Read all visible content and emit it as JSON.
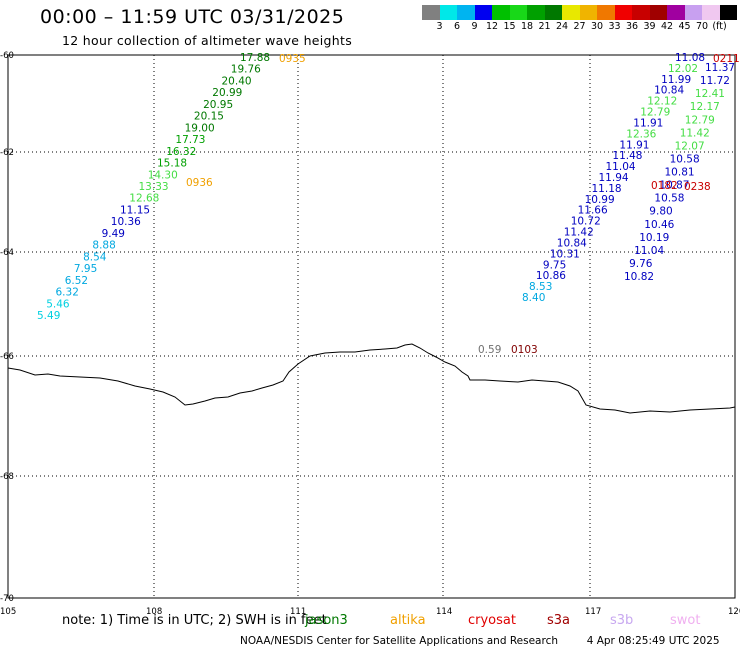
{
  "header": {
    "title": "00:00 – 11:59 UTC 03/31/2025",
    "subtitle": "12 hour collection of altimeter wave heights"
  },
  "legend": {
    "colors": [
      "#808080",
      "#00e8e8",
      "#00b4f0",
      "#0000f0",
      "#00c000",
      "#18d818",
      "#00a000",
      "#007800",
      "#e8e800",
      "#f0b400",
      "#f07800",
      "#f00000",
      "#c80000",
      "#a00000",
      "#a000a0",
      "#c8a0f0",
      "#f0c8f0",
      "#000000"
    ],
    "tick_values": [
      "3",
      "6",
      "9",
      "12",
      "15",
      "18",
      "21",
      "24",
      "27",
      "30",
      "33",
      "36",
      "39",
      "42",
      "45",
      "70",
      "(ft)"
    ]
  },
  "axes": {
    "lon_labels": [
      "105",
      "108",
      "111",
      "114",
      "117",
      "120"
    ],
    "lat_labels": [
      "-60",
      "-62",
      "-64",
      "-66",
      "-68",
      "-70"
    ]
  },
  "tracks": {
    "left": [
      {
        "v": "17.88",
        "c": "#007800"
      },
      {
        "v": "19.76",
        "c": "#007800"
      },
      {
        "v": "20.40",
        "c": "#007800"
      },
      {
        "v": "20.99",
        "c": "#007800"
      },
      {
        "v": "20.95",
        "c": "#007800"
      },
      {
        "v": "20.15",
        "c": "#007800"
      },
      {
        "v": "19.00",
        "c": "#007800"
      },
      {
        "v": "17.73",
        "c": "#00a000"
      },
      {
        "v": "16.32",
        "c": "#00a000"
      },
      {
        "v": "15.18",
        "c": "#00a000"
      },
      {
        "v": "14.30",
        "c": "#44dd44"
      },
      {
        "v": "13.33",
        "c": "#44dd44"
      },
      {
        "v": "12.68",
        "c": "#44dd44"
      },
      {
        "v": "11.15",
        "c": "#0000c0"
      },
      {
        "v": "10.36",
        "c": "#0000c0"
      },
      {
        "v": "9.49",
        "c": "#0000c0"
      },
      {
        "v": "8.88",
        "c": "#00a8e0"
      },
      {
        "v": "8.54",
        "c": "#00a8e0"
      },
      {
        "v": "7.95",
        "c": "#00a8e0"
      },
      {
        "v": "6.52",
        "c": "#00a8e0"
      },
      {
        "v": "6.32",
        "c": "#00a8e0"
      },
      {
        "v": "5.46",
        "c": "#00d0e0"
      },
      {
        "v": "5.49",
        "c": "#00d0e0"
      }
    ],
    "left_times": [
      "0935",
      "0936"
    ],
    "mid": [
      {
        "v": "11.08",
        "c": "#0000c0"
      },
      {
        "v": "12.02",
        "c": "#44dd44"
      },
      {
        "v": "11.99",
        "c": "#0000c0"
      },
      {
        "v": "10.84",
        "c": "#0000c0"
      },
      {
        "v": "12.12",
        "c": "#44dd44"
      },
      {
        "v": "12.79",
        "c": "#44dd44"
      },
      {
        "v": "11.91",
        "c": "#0000c0"
      },
      {
        "v": "12.36",
        "c": "#44dd44"
      },
      {
        "v": "11.91",
        "c": "#0000c0"
      },
      {
        "v": "11.48",
        "c": "#0000c0"
      },
      {
        "v": "11.04",
        "c": "#0000c0"
      },
      {
        "v": "11.94",
        "c": "#0000c0"
      },
      {
        "v": "11.18",
        "c": "#0000c0"
      },
      {
        "v": "10.99",
        "c": "#0000c0"
      },
      {
        "v": "11.66",
        "c": "#0000c0"
      },
      {
        "v": "10.72",
        "c": "#0000c0"
      },
      {
        "v": "11.42",
        "c": "#0000c0"
      },
      {
        "v": "10.84",
        "c": "#0000c0"
      },
      {
        "v": "10.31",
        "c": "#0000c0"
      },
      {
        "v": "9.75",
        "c": "#0000c0"
      },
      {
        "v": "10.86",
        "c": "#0000c0"
      },
      {
        "v": "8.53",
        "c": "#00a8e0"
      },
      {
        "v": "8.40",
        "c": "#00a8e0"
      }
    ],
    "right": [
      {
        "v": "11.37",
        "c": "#0000c0"
      },
      {
        "v": "11.72",
        "c": "#0000c0"
      },
      {
        "v": "12.41",
        "c": "#44dd44"
      },
      {
        "v": "12.17",
        "c": "#44dd44"
      },
      {
        "v": "12.79",
        "c": "#44dd44"
      },
      {
        "v": "11.42",
        "c": "#44dd44"
      },
      {
        "v": "12.07",
        "c": "#44dd44"
      },
      {
        "v": "10.58",
        "c": "#0000c0"
      },
      {
        "v": "10.81",
        "c": "#0000c0"
      },
      {
        "v": "10.87",
        "c": "#0000c0"
      },
      {
        "v": "10.58",
        "c": "#0000c0"
      },
      {
        "v": "9.80",
        "c": "#0000c0"
      },
      {
        "v": "10.46",
        "c": "#0000c0"
      },
      {
        "v": "10.19",
        "c": "#0000c0"
      },
      {
        "v": "11.04",
        "c": "#0000c0"
      },
      {
        "v": "9.76",
        "c": "#0000c0"
      },
      {
        "v": "10.82",
        "c": "#0000c0"
      }
    ],
    "right_times": [
      "0211",
      "0182",
      "0238"
    ],
    "isolated": {
      "v": "0.59",
      "c": "#707070",
      "time": "0103"
    }
  },
  "footer": {
    "note": "note: 1) Time is in UTC; 2) SWH is in feet",
    "satellites": [
      {
        "name": "jason3",
        "color": "#007800"
      },
      {
        "name": "altika",
        "color": "#f0a000"
      },
      {
        "name": "cryosat",
        "color": "#e00000"
      },
      {
        "name": "s3a",
        "color": "#a00000"
      },
      {
        "name": "s3b",
        "color": "#c8a8f0"
      },
      {
        "name": "swot",
        "color": "#f0b0f0"
      }
    ],
    "credit": "NOAA/NESDIS Center for Satellite Applications and Research",
    "generated": "4 Apr 08:25:49 UTC 2025"
  },
  "colors": {
    "time_left": "#f0a000",
    "time_right": "#c80000",
    "time_isolated": "#800000"
  }
}
